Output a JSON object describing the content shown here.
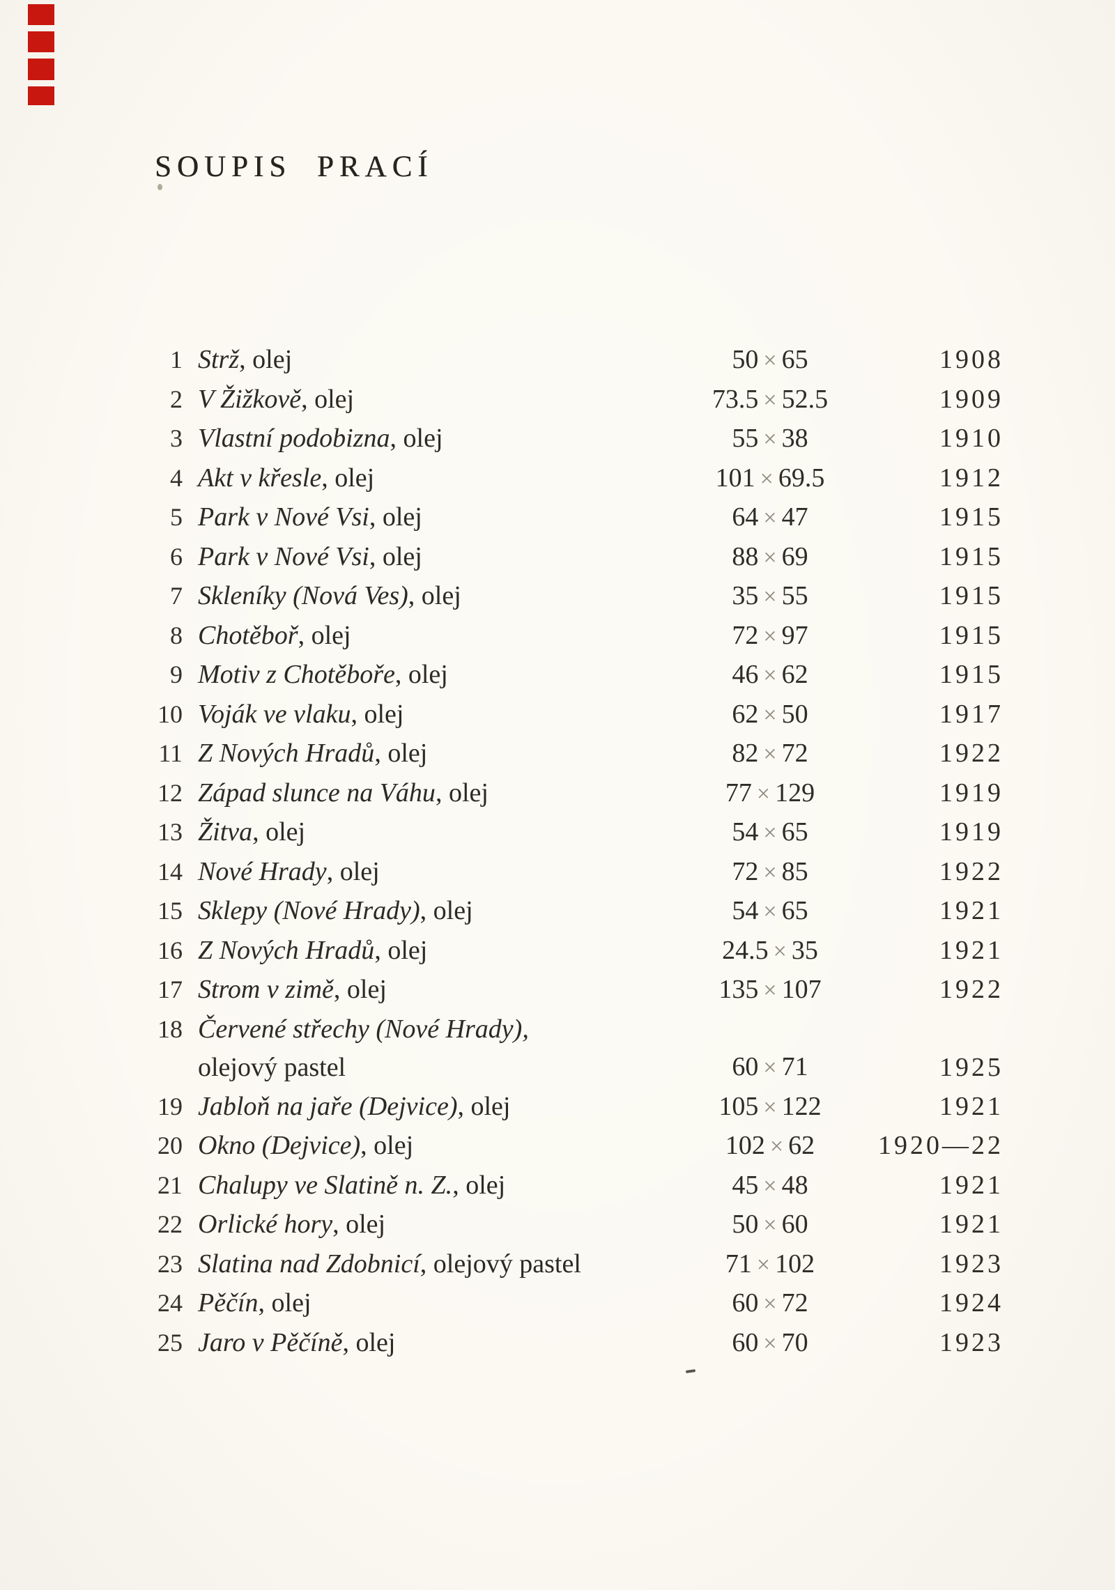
{
  "page": {
    "title": "SOUPIS PRACÍ",
    "times_sign": "×",
    "paper_color": "#fbf9f2",
    "ink_color": "#2c2a23",
    "red_mark_color": "#c8170f"
  },
  "works": [
    {
      "no": "1",
      "title": "Strž",
      "medium": ", olej",
      "w": "50",
      "h": "65",
      "year": "1908"
    },
    {
      "no": "2",
      "title": "V Žižkově",
      "medium": ", olej",
      "w": "73.5",
      "h": "52.5",
      "year": "1909"
    },
    {
      "no": "3",
      "title": "Vlastní podobizna",
      "medium": ", olej",
      "w": "55",
      "h": "38",
      "year": "1910"
    },
    {
      "no": "4",
      "title": "Akt v křesle",
      "medium": ", olej",
      "w": "101",
      "h": "69.5",
      "year": "1912"
    },
    {
      "no": "5",
      "title": "Park v Nové Vsi",
      "medium": ", olej",
      "w": "64",
      "h": "47",
      "year": "1915"
    },
    {
      "no": "6",
      "title": "Park v Nové Vsi",
      "medium": ", olej",
      "w": "88",
      "h": "69",
      "year": "1915"
    },
    {
      "no": "7",
      "title": "Skleníky (Nová Ves)",
      "medium": ", olej",
      "w": "35",
      "h": "55",
      "year": "1915"
    },
    {
      "no": "8",
      "title": "Chotěboř",
      "medium": ", olej",
      "w": "72",
      "h": "97",
      "year": "1915"
    },
    {
      "no": "9",
      "title": "Motiv z Chotěboře",
      "medium": ", olej",
      "w": "46",
      "h": "62",
      "year": "1915"
    },
    {
      "no": "10",
      "title": "Voják ve vlaku",
      "medium": ", olej",
      "w": "62",
      "h": "50",
      "year": "1917"
    },
    {
      "no": "11",
      "title": "Z Nových Hradů",
      "medium": ", olej",
      "w": "82",
      "h": "72",
      "year": "1922"
    },
    {
      "no": "12",
      "title": "Západ slunce na Váhu",
      "medium": ", olej",
      "w": "77",
      "h": "129",
      "year": "1919"
    },
    {
      "no": "13",
      "title": "Žitva",
      "medium": ", olej",
      "w": "54",
      "h": "65",
      "year": "1919"
    },
    {
      "no": "14",
      "title": "Nové Hrady",
      "medium": ", olej",
      "w": "72",
      "h": "85",
      "year": "1922"
    },
    {
      "no": "15",
      "title": "Sklepy (Nové Hrady)",
      "medium": ", olej",
      "w": "54",
      "h": "65",
      "year": "1921"
    },
    {
      "no": "16",
      "title": "Z Nových Hradů",
      "medium": ", olej",
      "w": "24.5",
      "h": "35",
      "year": "1921"
    },
    {
      "no": "17",
      "title": "Strom v zimě",
      "medium": ", olej",
      "w": "135",
      "h": "107",
      "year": "1922"
    },
    {
      "no": "18",
      "title": "Červené střechy (Nové Hrady),",
      "medium": "",
      "line2": "olejový pastel",
      "w": "60",
      "h": "71",
      "year": "1925"
    },
    {
      "no": "19",
      "title": "Jabloň na jaře (Dejvice)",
      "medium": ", olej",
      "w": "105",
      "h": "122",
      "year": "1921"
    },
    {
      "no": "20",
      "title": "Okno (Dejvice)",
      "medium": ", olej",
      "w": "102",
      "h": "62",
      "year": "1920—22"
    },
    {
      "no": "21",
      "title": "Chalupy ve Slatině n. Z.",
      "medium": ", olej",
      "w": "45",
      "h": "48",
      "year": "1921"
    },
    {
      "no": "22",
      "title": "Orlické hory",
      "medium": ", olej",
      "w": "50",
      "h": "60",
      "year": "1921"
    },
    {
      "no": "23",
      "title": "Slatina nad Zdobnicí",
      "medium": ", olejový pastel",
      "w": "71",
      "h": "102",
      "year": "1923"
    },
    {
      "no": "24",
      "title": "Pěčín",
      "medium": ", olej",
      "w": "60",
      "h": "72",
      "year": "1924"
    },
    {
      "no": "25",
      "title": "Jaro v Pěčíně",
      "medium": ", olej",
      "w": "60",
      "h": "70",
      "year": "1923"
    }
  ]
}
